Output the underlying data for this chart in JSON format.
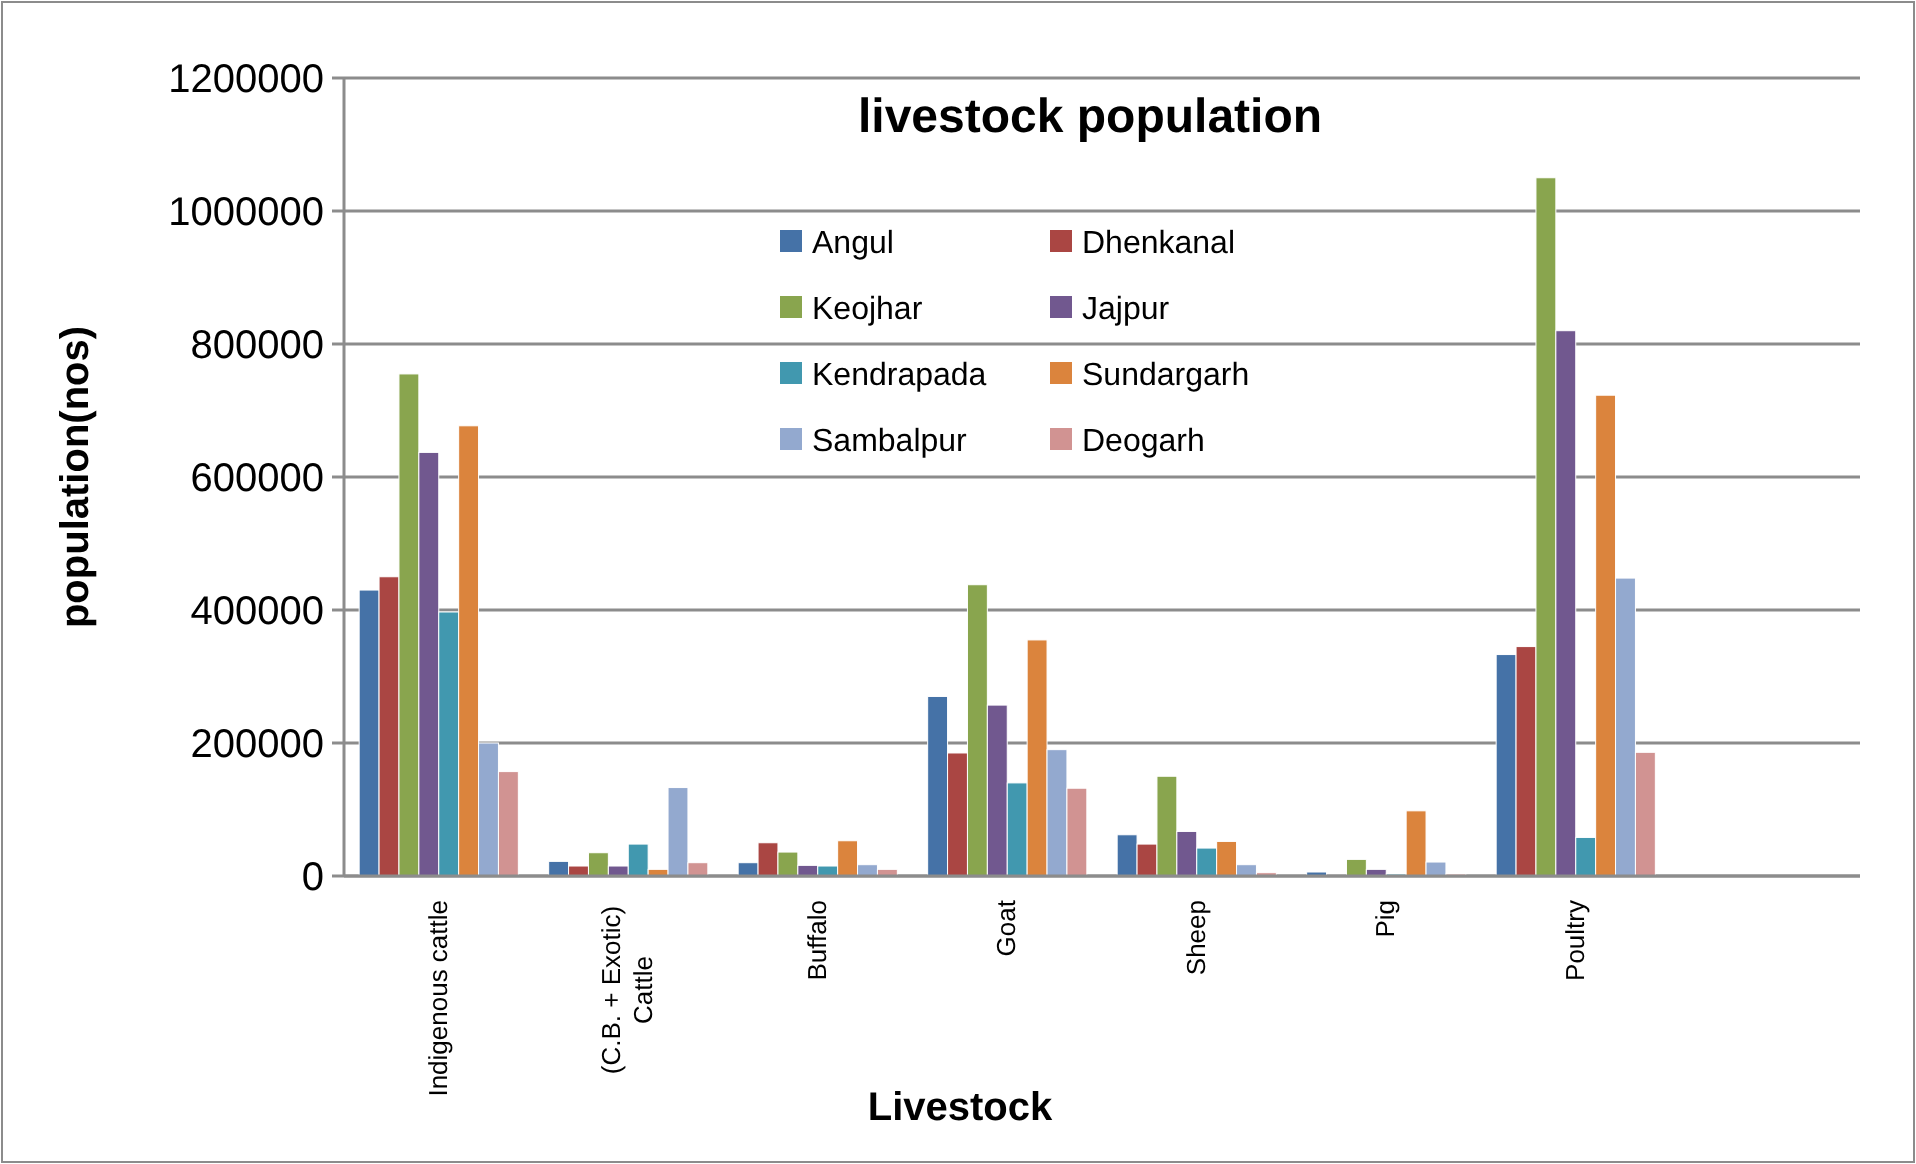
{
  "chart_data": {
    "type": "bar",
    "title": "livestock population",
    "xlabel": "Livestock",
    "ylabel": "population(nos)",
    "categories": [
      "Indigenous cattle",
      "(C.B. + Exotic) Cattle",
      "Buffalo",
      "Goat",
      "Sheep",
      "Pig",
      "Poultry",
      null
    ],
    "series": [
      {
        "name": "Angul",
        "color": "#4572a7",
        "values": [
          430000,
          22000,
          20000,
          270000,
          62000,
          6000,
          333000,
          null
        ]
      },
      {
        "name": "Dhenkanal",
        "color": "#aa4643",
        "values": [
          450000,
          15000,
          50000,
          185000,
          48000,
          null,
          345000,
          null
        ]
      },
      {
        "name": "Keojhar",
        "color": "#89a54e",
        "values": [
          755000,
          35000,
          36000,
          438000,
          150000,
          25000,
          1050000,
          null
        ]
      },
      {
        "name": "Jajpur",
        "color": "#71588f",
        "values": [
          637000,
          15000,
          16000,
          257000,
          67000,
          10000,
          820000,
          null
        ]
      },
      {
        "name": "Kendrapada",
        "color": "#4198af",
        "values": [
          397000,
          48000,
          15000,
          140000,
          42000,
          3000,
          58000,
          null
        ]
      },
      {
        "name": "Sundargarh",
        "color": "#db843d",
        "values": [
          677000,
          10000,
          53000,
          355000,
          52000,
          98000,
          723000,
          null
        ]
      },
      {
        "name": "Sambalpur",
        "color": "#93a9cf",
        "values": [
          200000,
          133000,
          17000,
          190000,
          17000,
          21000,
          448000,
          null
        ]
      },
      {
        "name": "Deogarh",
        "color": "#d19392",
        "values": [
          157000,
          20000,
          10000,
          132000,
          5000,
          3000,
          186000,
          null
        ]
      }
    ],
    "ylim": [
      0,
      1200000
    ],
    "yticks": [
      0,
      200000,
      400000,
      600000,
      800000,
      1000000,
      1200000
    ],
    "grid": "y",
    "legend": "top"
  }
}
